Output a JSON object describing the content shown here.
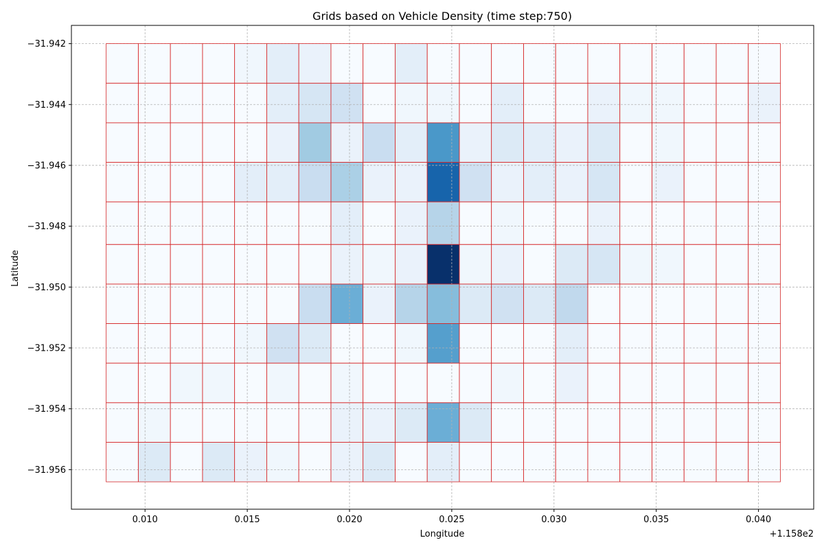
{
  "chart_data": {
    "type": "heatmap",
    "title": "Grids based on Vehicle Density (time step:750)",
    "xlabel": "Longitude",
    "ylabel": "Latitude",
    "x_offset_label": "+1.158e2",
    "xlim": [
      0.0064,
      0.0427
    ],
    "ylim": [
      -31.9573,
      -31.9414
    ],
    "x_ticks": [
      0.01,
      0.015,
      0.02,
      0.025,
      0.03,
      0.035,
      0.04
    ],
    "x_tick_labels": [
      "0.010",
      "0.015",
      "0.020",
      "0.025",
      "0.030",
      "0.035",
      "0.040"
    ],
    "y_ticks": [
      -31.942,
      -31.944,
      -31.946,
      -31.948,
      -31.95,
      -31.952,
      -31.954,
      -31.956
    ],
    "y_tick_labels": [
      "−31.942",
      "−31.944",
      "−31.946",
      "−31.948",
      "−31.950",
      "−31.952",
      "−31.954",
      "−31.956"
    ],
    "x_edges": [
      0.0081,
      0.00967,
      0.01124,
      0.01281,
      0.01438,
      0.01595,
      0.01752,
      0.01909,
      0.02066,
      0.02223,
      0.0238,
      0.02537,
      0.02694,
      0.02851,
      0.03008,
      0.03165,
      0.03322,
      0.03479,
      0.03636,
      0.03793,
      0.0395,
      0.04107
    ],
    "y_edges": [
      -31.942,
      -31.9433,
      -31.9446,
      -31.9459,
      -31.9472,
      -31.9486,
      -31.9499,
      -31.9512,
      -31.9525,
      -31.9538,
      -31.9551,
      -31.9564
    ],
    "values": [
      [
        0,
        0,
        0,
        0,
        1,
        3,
        2,
        0,
        0,
        3,
        0,
        0,
        0,
        0,
        0,
        0,
        0,
        0,
        0,
        0,
        0
      ],
      [
        0,
        0,
        0,
        0,
        0,
        3,
        5,
        6,
        0,
        1,
        1,
        0,
        3,
        0,
        0,
        2,
        1,
        1,
        0,
        0,
        2
      ],
      [
        0,
        0,
        0,
        0,
        0,
        2,
        11,
        2,
        7,
        3,
        18,
        2,
        4,
        3,
        2,
        4,
        0,
        1,
        0,
        0,
        0
      ],
      [
        0,
        0,
        0,
        0,
        3,
        3,
        7,
        10,
        2,
        2,
        24,
        6,
        2,
        3,
        2,
        5,
        0,
        2,
        0,
        0,
        0
      ],
      [
        0,
        0,
        0,
        0,
        0,
        0,
        0,
        3,
        0,
        2,
        9,
        0,
        1,
        0,
        0,
        2,
        0,
        0,
        0,
        0,
        0
      ],
      [
        0,
        0,
        0,
        0,
        0,
        0,
        0,
        2,
        1,
        2,
        30,
        1,
        2,
        0,
        4,
        5,
        1,
        1,
        0,
        0,
        0
      ],
      [
        0,
        0,
        0,
        0,
        0,
        0,
        7,
        15,
        2,
        9,
        13,
        4,
        6,
        4,
        8,
        0,
        0,
        0,
        0,
        0,
        0
      ],
      [
        0,
        0,
        0,
        0,
        1,
        6,
        4,
        0,
        0,
        1,
        17,
        0,
        0,
        0,
        3,
        0,
        0,
        0,
        0,
        0,
        0
      ],
      [
        0,
        0,
        1,
        1,
        0,
        1,
        0,
        1,
        0,
        0,
        0,
        0,
        1,
        0,
        2,
        0,
        0,
        0,
        0,
        0,
        0
      ],
      [
        0,
        1,
        0,
        0,
        0,
        0,
        0,
        2,
        2,
        4,
        15,
        4,
        0,
        0,
        0,
        0,
        0,
        0,
        0,
        0,
        0
      ],
      [
        0,
        4,
        0,
        4,
        2,
        1,
        0,
        2,
        4,
        0,
        3,
        0,
        0,
        0,
        0,
        0,
        0,
        0,
        0,
        0,
        0
      ]
    ],
    "colormap": "Blues",
    "grid": true,
    "cell_edge_color": "#d62728"
  }
}
